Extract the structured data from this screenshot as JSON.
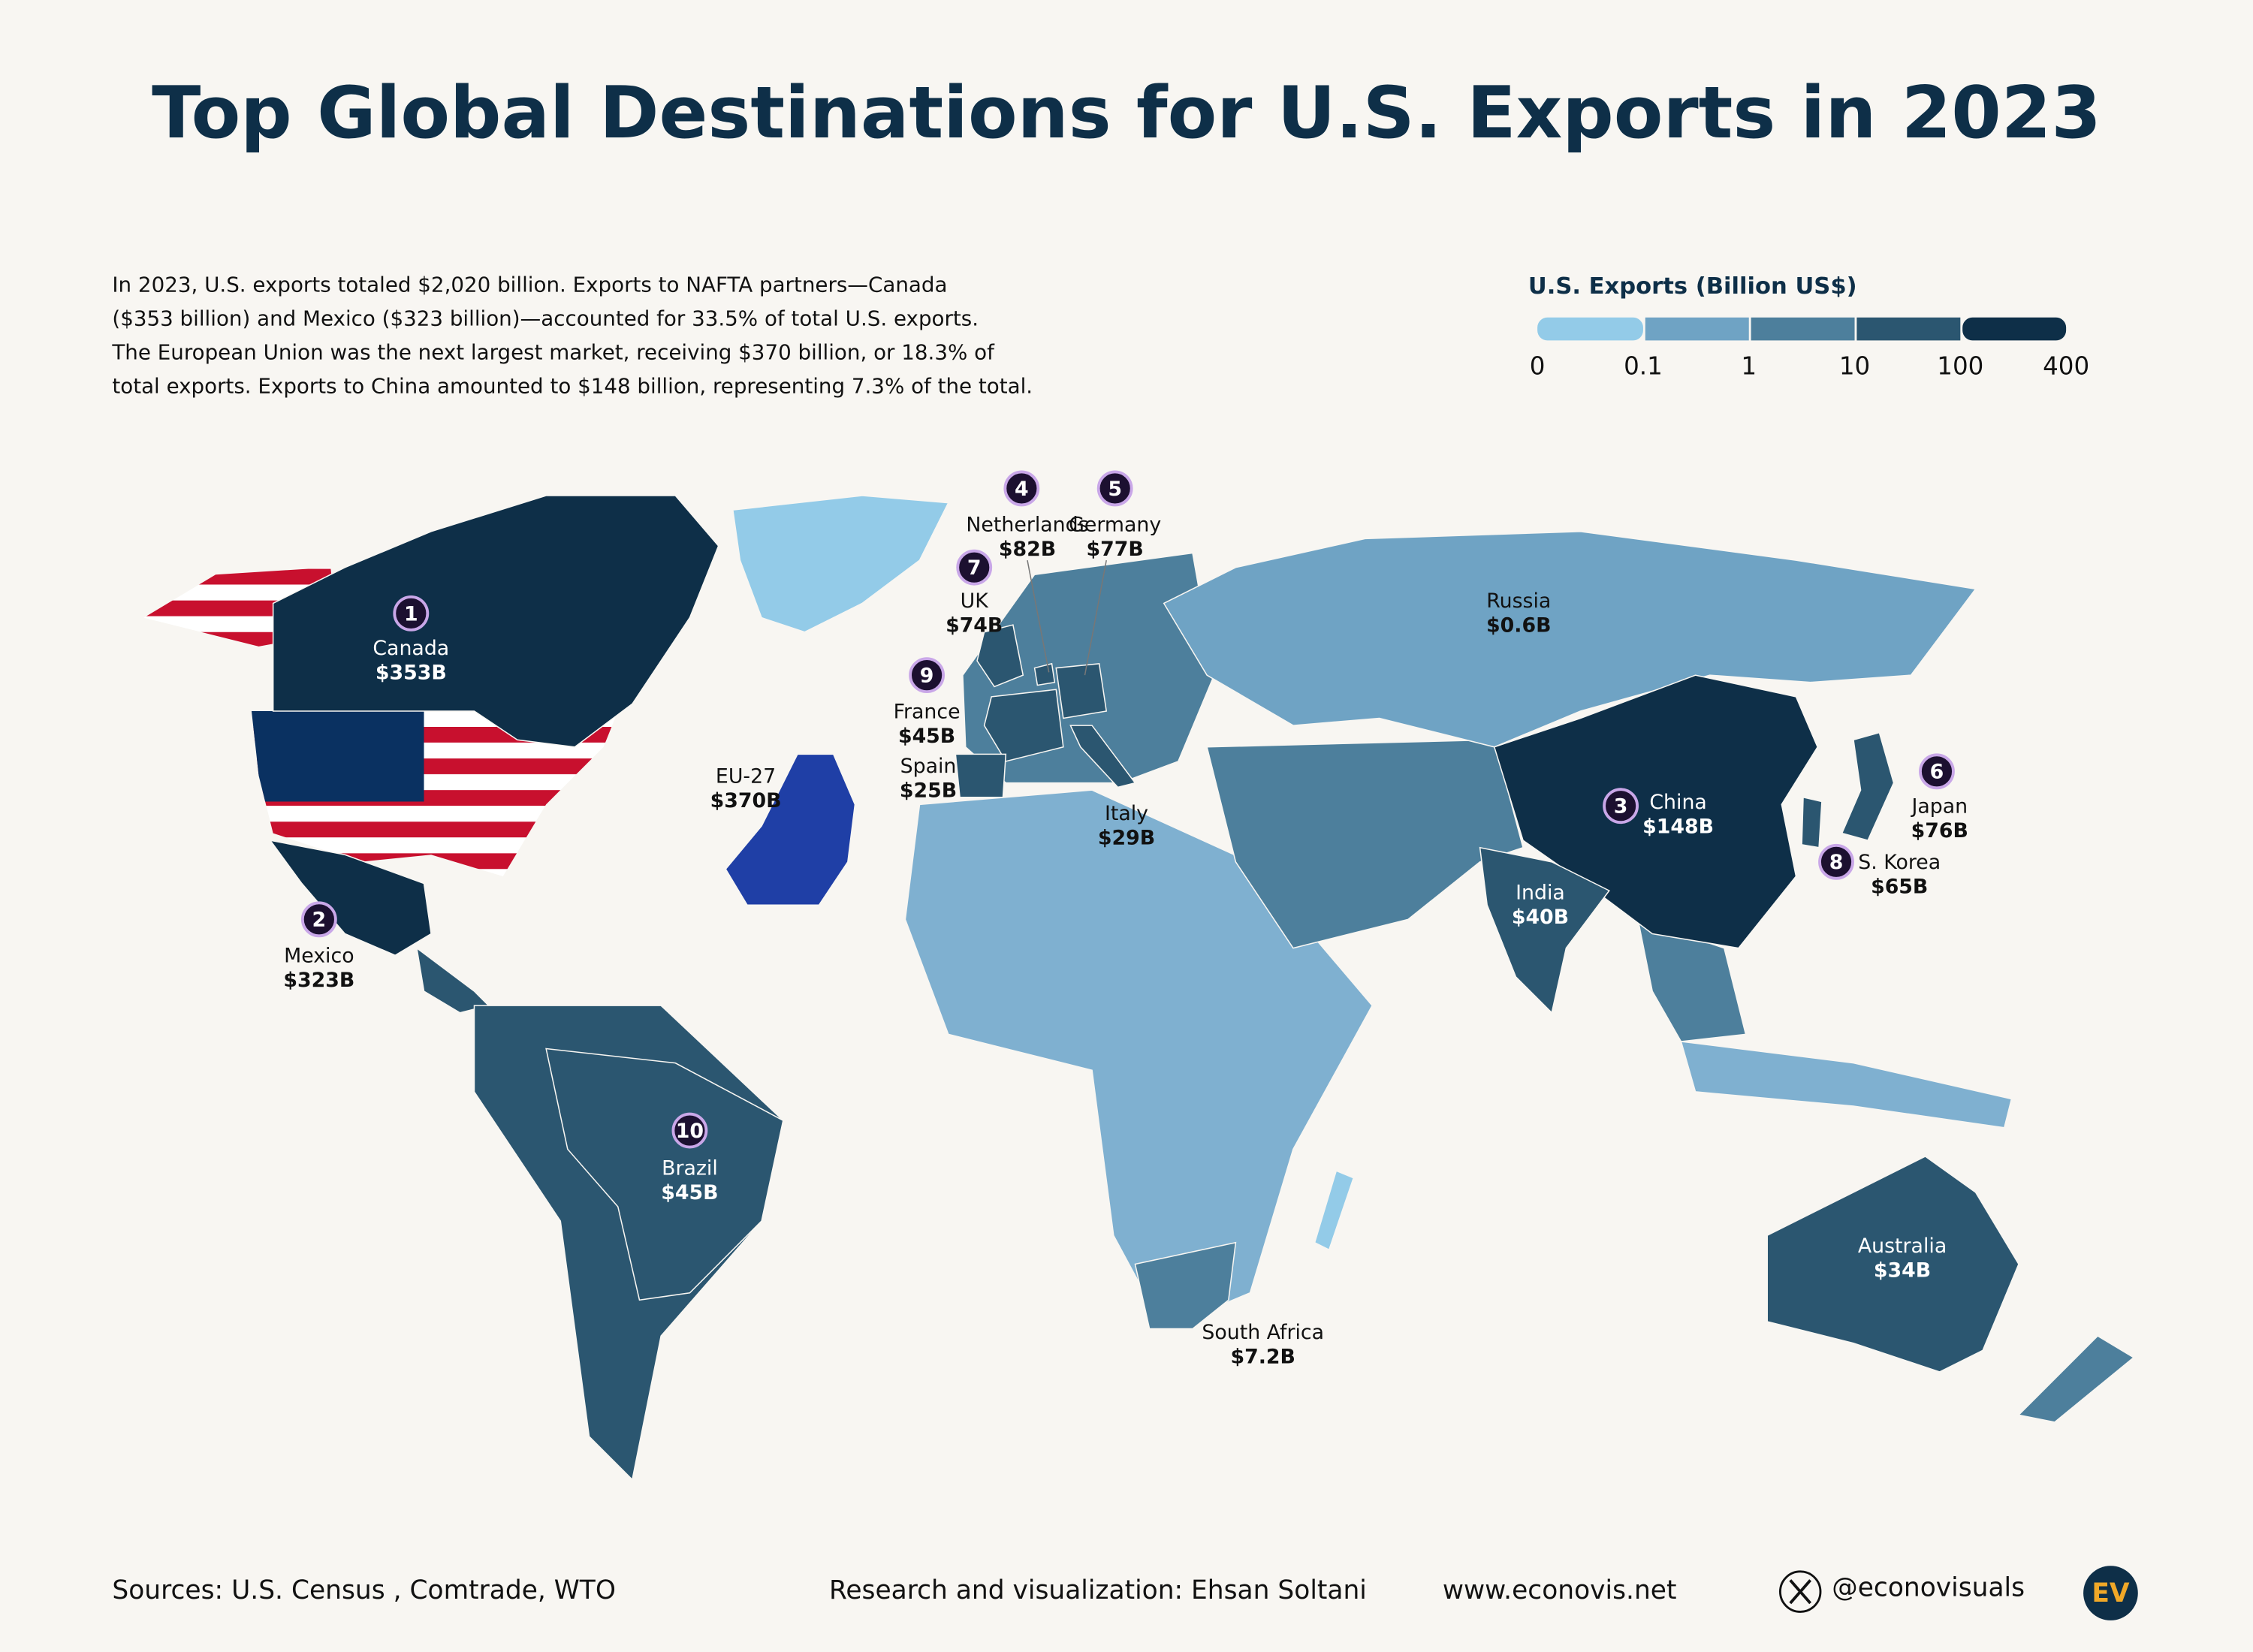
{
  "header": {
    "title": "Top Global Destinations for U.S. Exports in 2023"
  },
  "description": [
    "In 2023, U.S. exports totaled $2,020 billion. Exports to NAFTA partners—Canada",
    "($353 billion) and Mexico ($323 billion)—accounted for 33.5% of total U.S. exports.",
    "The European Union was the next largest market, receiving $370 billion, or 18.3% of",
    "total exports. Exports to China amounted to $148 billion, representing 7.3% of the total."
  ],
  "legend": {
    "title": "U.S. Exports (Billion US$)",
    "ticks": [
      0,
      0.1,
      1,
      10,
      100,
      400
    ],
    "colors": [
      "#93cbe8",
      "#6fa3c4",
      "#4d7f9c",
      "#2b5670",
      "#0e2f48"
    ]
  },
  "destinations": [
    {
      "rank": 1,
      "name": "Canada",
      "value": 353,
      "value_label": "$353B"
    },
    {
      "rank": 2,
      "name": "Mexico",
      "value": 323,
      "value_label": "$323B"
    },
    {
      "rank": 3,
      "name": "China",
      "value": 148,
      "value_label": "$148B"
    },
    {
      "rank": 4,
      "name": "Netherlands",
      "value": 82,
      "value_label": "$82B"
    },
    {
      "rank": 5,
      "name": "Germany",
      "value": 77,
      "value_label": "$77B"
    },
    {
      "rank": 6,
      "name": "Japan",
      "value": 76,
      "value_label": "$76B"
    },
    {
      "rank": 7,
      "name": "UK",
      "value": 74,
      "value_label": "$74B"
    },
    {
      "rank": 8,
      "name": "S. Korea",
      "value": 65,
      "value_label": "$65B"
    },
    {
      "rank": 9,
      "name": "France",
      "value": 45,
      "value_label": "$45B"
    },
    {
      "rank": 10,
      "name": "Brazil",
      "value": 45,
      "value_label": "$45B"
    },
    {
      "name": "EU-27",
      "value": 370,
      "value_label": "$370B",
      "color": "#1f3fa6"
    },
    {
      "name": "Spain",
      "value": 25,
      "value_label": "$25B"
    },
    {
      "name": "Italy",
      "value": 29,
      "value_label": "$29B"
    },
    {
      "name": "Russia",
      "value": 0.6,
      "value_label": "$0.6B"
    },
    {
      "name": "India",
      "value": 40,
      "value_label": "$40B"
    },
    {
      "name": "South Africa",
      "value": 7.2,
      "value_label": "$7.2B"
    },
    {
      "name": "Australia",
      "value": 34,
      "value_label": "$34B"
    }
  ],
  "footer": {
    "sources": "Sources: U.S. Census , Comtrade, WTO",
    "credit": "Research and visualization: Ehsan Soltani",
    "website": "www.econovis.net",
    "social": "@econovisuals",
    "logo": "EV"
  }
}
